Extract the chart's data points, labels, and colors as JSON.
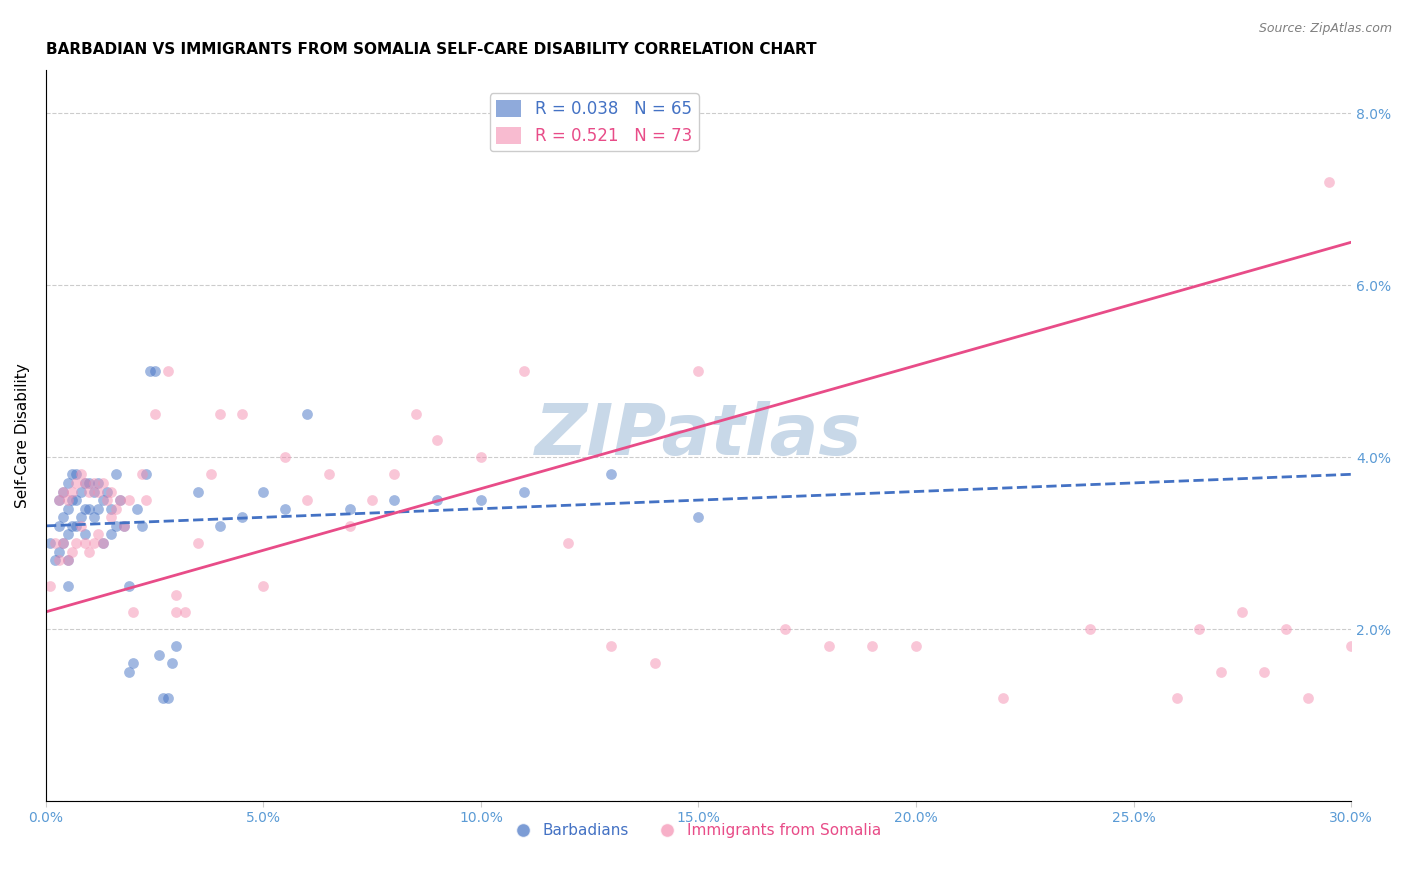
{
  "title": "BARBADIAN VS IMMIGRANTS FROM SOMALIA SELF-CARE DISABILITY CORRELATION CHART",
  "source": "Source: ZipAtlas.com",
  "ylabel": "Self-Care Disability",
  "xlim": [
    0.0,
    0.3
  ],
  "ylim": [
    0.0,
    0.085
  ],
  "xticks": [
    0.0,
    0.05,
    0.1,
    0.15,
    0.2,
    0.25,
    0.3
  ],
  "xtick_labels": [
    "0.0%",
    "5.0%",
    "10.0%",
    "15.0%",
    "20.0%",
    "25.0%",
    "30.0%"
  ],
  "yticks": [
    0.0,
    0.02,
    0.04,
    0.06,
    0.08
  ],
  "ytick_labels_right": [
    "",
    "2.0%",
    "4.0%",
    "6.0%",
    "8.0%"
  ],
  "watermark": "ZIPatlas",
  "blue_scatter_x": [
    0.001,
    0.002,
    0.003,
    0.003,
    0.003,
    0.004,
    0.004,
    0.004,
    0.005,
    0.005,
    0.005,
    0.005,
    0.005,
    0.006,
    0.006,
    0.006,
    0.007,
    0.007,
    0.007,
    0.008,
    0.008,
    0.009,
    0.009,
    0.009,
    0.01,
    0.01,
    0.011,
    0.011,
    0.012,
    0.012,
    0.013,
    0.013,
    0.014,
    0.015,
    0.015,
    0.016,
    0.016,
    0.017,
    0.018,
    0.019,
    0.019,
    0.02,
    0.021,
    0.022,
    0.023,
    0.024,
    0.025,
    0.026,
    0.027,
    0.028,
    0.029,
    0.03,
    0.035,
    0.04,
    0.045,
    0.05,
    0.055,
    0.06,
    0.07,
    0.08,
    0.09,
    0.1,
    0.11,
    0.13,
    0.15
  ],
  "blue_scatter_y": [
    0.03,
    0.028,
    0.035,
    0.032,
    0.029,
    0.036,
    0.033,
    0.03,
    0.037,
    0.034,
    0.031,
    0.028,
    0.025,
    0.038,
    0.035,
    0.032,
    0.038,
    0.035,
    0.032,
    0.036,
    0.033,
    0.037,
    0.034,
    0.031,
    0.037,
    0.034,
    0.036,
    0.033,
    0.037,
    0.034,
    0.035,
    0.03,
    0.036,
    0.034,
    0.031,
    0.038,
    0.032,
    0.035,
    0.032,
    0.015,
    0.025,
    0.016,
    0.034,
    0.032,
    0.038,
    0.05,
    0.05,
    0.017,
    0.012,
    0.012,
    0.016,
    0.018,
    0.036,
    0.032,
    0.033,
    0.036,
    0.034,
    0.045,
    0.034,
    0.035,
    0.035,
    0.035,
    0.036,
    0.038,
    0.033
  ],
  "pink_scatter_x": [
    0.001,
    0.002,
    0.003,
    0.003,
    0.004,
    0.004,
    0.005,
    0.005,
    0.006,
    0.006,
    0.007,
    0.007,
    0.008,
    0.008,
    0.009,
    0.009,
    0.01,
    0.01,
    0.011,
    0.011,
    0.012,
    0.012,
    0.013,
    0.013,
    0.014,
    0.015,
    0.015,
    0.016,
    0.017,
    0.018,
    0.019,
    0.02,
    0.022,
    0.023,
    0.025,
    0.028,
    0.03,
    0.03,
    0.032,
    0.035,
    0.038,
    0.04,
    0.045,
    0.05,
    0.055,
    0.06,
    0.065,
    0.07,
    0.075,
    0.08,
    0.085,
    0.09,
    0.1,
    0.11,
    0.12,
    0.13,
    0.14,
    0.15,
    0.17,
    0.18,
    0.19,
    0.2,
    0.22,
    0.24,
    0.26,
    0.27,
    0.28,
    0.29,
    0.295,
    0.265,
    0.3,
    0.285,
    0.275
  ],
  "pink_scatter_y": [
    0.025,
    0.03,
    0.035,
    0.028,
    0.036,
    0.03,
    0.035,
    0.028,
    0.036,
    0.029,
    0.037,
    0.03,
    0.038,
    0.032,
    0.037,
    0.03,
    0.036,
    0.029,
    0.037,
    0.03,
    0.036,
    0.031,
    0.037,
    0.03,
    0.035,
    0.036,
    0.033,
    0.034,
    0.035,
    0.032,
    0.035,
    0.022,
    0.038,
    0.035,
    0.045,
    0.05,
    0.022,
    0.024,
    0.022,
    0.03,
    0.038,
    0.045,
    0.045,
    0.025,
    0.04,
    0.035,
    0.038,
    0.032,
    0.035,
    0.038,
    0.045,
    0.042,
    0.04,
    0.05,
    0.03,
    0.018,
    0.016,
    0.05,
    0.02,
    0.018,
    0.018,
    0.018,
    0.012,
    0.02,
    0.012,
    0.015,
    0.015,
    0.012,
    0.072,
    0.02,
    0.018,
    0.02,
    0.022
  ],
  "blue_line_x": [
    0.0,
    0.3
  ],
  "blue_line_y": [
    0.032,
    0.038
  ],
  "blue_line_style": "--",
  "blue_line_color": "#4472c4",
  "pink_line_x": [
    0.0,
    0.3
  ],
  "pink_line_y": [
    0.022,
    0.065
  ],
  "pink_line_color": "#e84c88",
  "pink_scatter_color": "#f48fb1",
  "title_fontsize": 11,
  "axis_tick_color": "#5b9bd5",
  "scatter_alpha": 0.5,
  "scatter_size": 60,
  "watermark_color": "#c8d8e8",
  "watermark_fontsize": 52,
  "legend_label_blue": "R = 0.038   N = 65",
  "legend_label_pink": "R = 0.521   N = 73",
  "bottom_legend_blue": "Barbadians",
  "bottom_legend_pink": "Immigrants from Somalia"
}
